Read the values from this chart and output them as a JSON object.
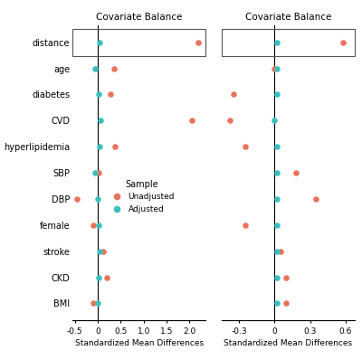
{
  "variables": [
    "distance",
    "age",
    "diabetes",
    "CVD",
    "hyperlipidemia",
    "SBP",
    "DBP",
    "female",
    "stroke",
    "CKD",
    "BMI"
  ],
  "left": {
    "unadjusted": [
      2.18,
      0.35,
      0.28,
      2.05,
      0.38,
      0.02,
      -0.45,
      -0.1,
      0.12,
      0.2,
      -0.1
    ],
    "adjusted": [
      0.05,
      -0.05,
      0.02,
      0.07,
      0.05,
      -0.05,
      0.01,
      0.02,
      0.05,
      0.02,
      0.01
    ],
    "xlim": [
      -0.55,
      2.35
    ],
    "xticks": [
      -0.5,
      0.0,
      0.5,
      1.0,
      1.5,
      2.0
    ],
    "xticklabels": [
      "-0.5",
      "0",
      "0.5",
      "1.0",
      "1.5",
      "2.0"
    ],
    "xlabel": "Standardized Mean Differences"
  },
  "right": {
    "unadjusted": [
      0.58,
      0.0,
      -0.35,
      -0.38,
      -0.25,
      0.18,
      0.35,
      -0.25,
      0.05,
      0.1,
      0.1
    ],
    "adjusted": [
      0.02,
      0.02,
      0.02,
      0.0,
      0.02,
      0.02,
      0.02,
      0.02,
      0.02,
      0.02,
      0.02
    ],
    "xlim": [
      -0.45,
      0.68
    ],
    "xticks": [
      -0.3,
      0.0,
      0.3,
      0.6
    ],
    "xticklabels": [
      "-0.3",
      "0",
      "0.3",
      "0.6"
    ],
    "xlabel": "Standardized Mean Differences"
  },
  "title": "Covariate Balance",
  "color_unadjusted": "#E8735A",
  "color_adjusted": "#3BBFBF",
  "legend_title": "Sample",
  "legend_unadjusted": "Unadjusted",
  "legend_adjusted": "Adjusted"
}
